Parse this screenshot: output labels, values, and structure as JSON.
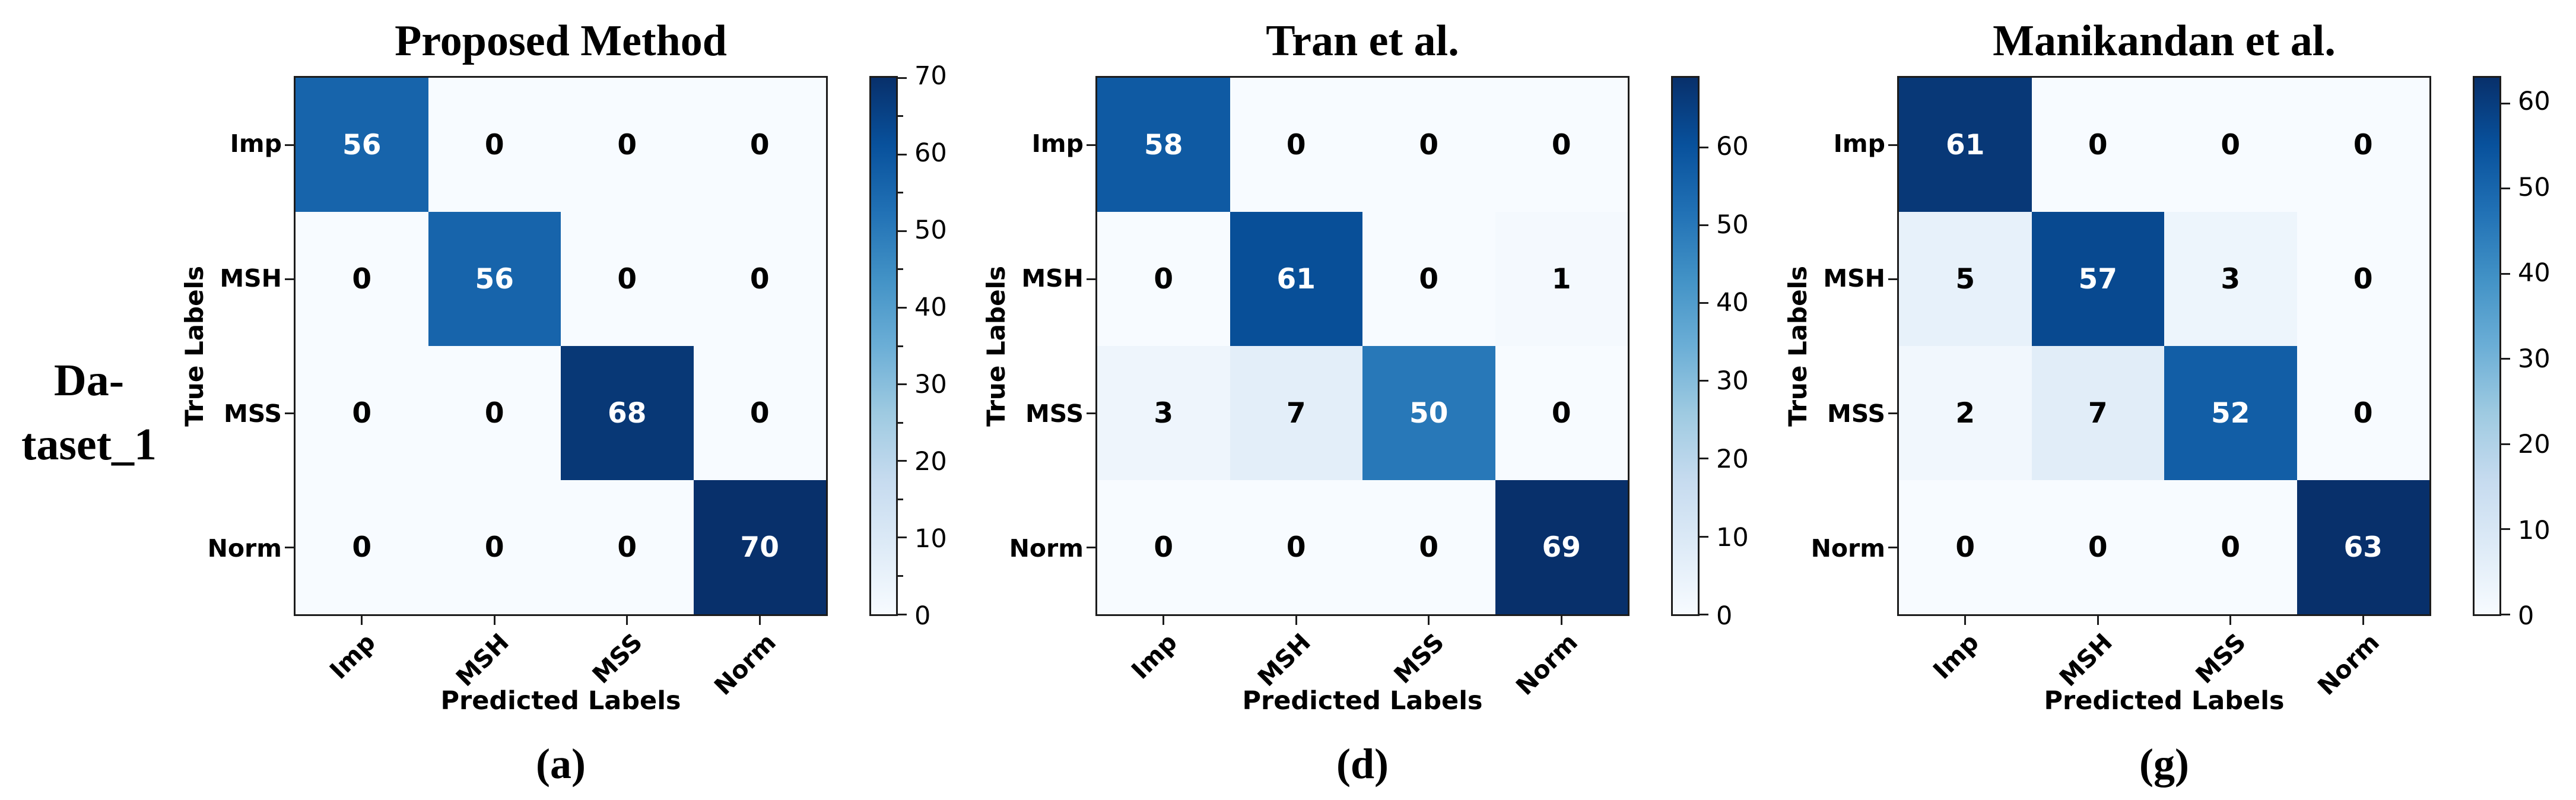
{
  "figure": {
    "row_label": {
      "line1": "Da-",
      "line2": "taset_1"
    },
    "colormap": {
      "name": "Blues",
      "anchors": [
        [
          0,
          "#f7fbff"
        ],
        [
          0.125,
          "#deebf7"
        ],
        [
          0.25,
          "#c6dbef"
        ],
        [
          0.375,
          "#9ecae1"
        ],
        [
          0.5,
          "#6baed6"
        ],
        [
          0.625,
          "#4292c6"
        ],
        [
          0.75,
          "#2171b5"
        ],
        [
          0.875,
          "#08519c"
        ],
        [
          1,
          "#08306b"
        ]
      ],
      "frame_color": "#1c1c1c"
    }
  },
  "chart_data": [
    {
      "type": "heatmap",
      "title": "Proposed Method",
      "caption": "(a)",
      "xlabel": "Predicted Labels",
      "ylabel": "True Labels",
      "categories": [
        "Imp",
        "MSH",
        "MSS",
        "Norm"
      ],
      "matrix": [
        [
          56,
          0,
          0,
          0
        ],
        [
          0,
          56,
          0,
          0
        ],
        [
          0,
          0,
          68,
          0
        ],
        [
          0,
          0,
          0,
          70
        ]
      ],
      "vmin": 0,
      "vmax": 70,
      "colorbar_ticks": [
        0,
        10,
        20,
        30,
        40,
        50,
        60,
        70
      ],
      "colorbar_minor_step": 5,
      "colormap": "Blues"
    },
    {
      "type": "heatmap",
      "title": "Tran et al.",
      "caption": "(d)",
      "xlabel": "Predicted Labels",
      "ylabel": "True Labels",
      "categories": [
        "Imp",
        "MSH",
        "MSS",
        "Norm"
      ],
      "matrix": [
        [
          58,
          0,
          0,
          0
        ],
        [
          0,
          61,
          0,
          1
        ],
        [
          3,
          7,
          50,
          0
        ],
        [
          0,
          0,
          0,
          69
        ]
      ],
      "vmin": 0,
      "vmax": 69,
      "colorbar_ticks": [
        0,
        10,
        20,
        30,
        40,
        50,
        60
      ],
      "colorbar_minor_step": null,
      "colormap": "Blues"
    },
    {
      "type": "heatmap",
      "title": "Manikandan et al.",
      "caption": "(g)",
      "xlabel": "Predicted Labels",
      "ylabel": "True Labels",
      "categories": [
        "Imp",
        "MSH",
        "MSS",
        "Norm"
      ],
      "matrix": [
        [
          61,
          0,
          0,
          0
        ],
        [
          5,
          57,
          3,
          0
        ],
        [
          2,
          7,
          52,
          0
        ],
        [
          0,
          0,
          0,
          63
        ]
      ],
      "vmin": 0,
      "vmax": 63,
      "colorbar_ticks": [
        0,
        10,
        20,
        30,
        40,
        50,
        60
      ],
      "colorbar_minor_step": null,
      "colormap": "Blues"
    }
  ]
}
